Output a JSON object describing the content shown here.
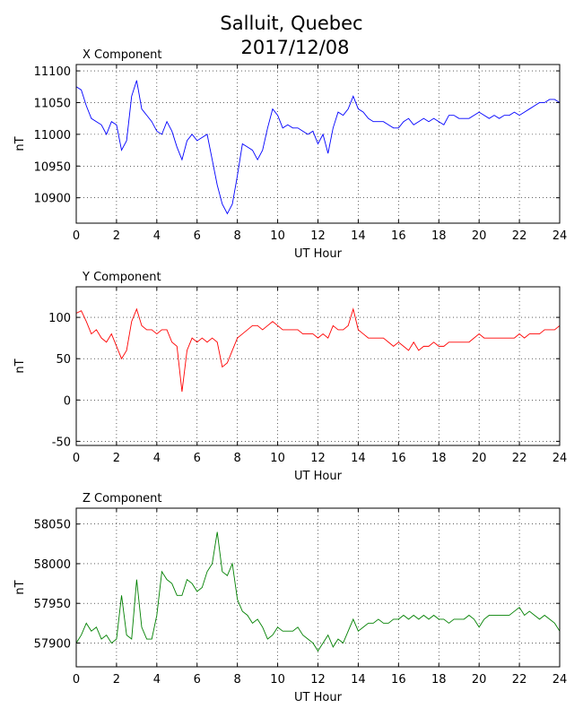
{
  "title": "Salluit, Quebec",
  "subtitle": "2017/12/08",
  "chart_data": [
    {
      "type": "line",
      "title": "X Component",
      "xlabel": "UT Hour",
      "ylabel": "nT",
      "color": "#0000ff",
      "grid": true,
      "xlim": [
        0,
        24
      ],
      "xticks": [
        0,
        2,
        4,
        6,
        8,
        10,
        12,
        14,
        16,
        18,
        20,
        22,
        24
      ],
      "ylim": [
        10860,
        11110
      ],
      "yticks": [
        10900,
        10950,
        11000,
        11050,
        11100
      ],
      "x": [
        0,
        0.25,
        0.5,
        0.75,
        1,
        1.25,
        1.5,
        1.75,
        2,
        2.25,
        2.5,
        2.75,
        3,
        3.25,
        3.5,
        3.75,
        4,
        4.25,
        4.5,
        4.75,
        5,
        5.25,
        5.5,
        5.75,
        6,
        6.25,
        6.5,
        6.75,
        7,
        7.25,
        7.5,
        7.75,
        8,
        8.25,
        8.5,
        8.75,
        9,
        9.25,
        9.5,
        9.75,
        10,
        10.25,
        10.5,
        10.75,
        11,
        11.25,
        11.5,
        11.75,
        12,
        12.25,
        12.5,
        12.75,
        13,
        13.25,
        13.5,
        13.75,
        14,
        14.25,
        14.5,
        14.75,
        15,
        15.25,
        15.5,
        15.75,
        16,
        16.25,
        16.5,
        16.75,
        17,
        17.25,
        17.5,
        17.75,
        18,
        18.25,
        18.5,
        18.75,
        19,
        19.25,
        19.5,
        19.75,
        20,
        20.25,
        20.5,
        20.75,
        21,
        21.25,
        21.5,
        21.75,
        22,
        22.25,
        22.5,
        22.75,
        23,
        23.25,
        23.5,
        23.75,
        24
      ],
      "values": [
        11075,
        11070,
        11045,
        11025,
        11020,
        11015,
        11000,
        11020,
        11015,
        10975,
        10990,
        11060,
        11085,
        11040,
        11030,
        11020,
        11005,
        11000,
        11020,
        11005,
        10980,
        10960,
        10990,
        11000,
        10990,
        10995,
        11000,
        10960,
        10920,
        10890,
        10875,
        10890,
        10935,
        10985,
        10980,
        10975,
        10960,
        10975,
        11010,
        11040,
        11030,
        11010,
        11015,
        11010,
        11010,
        11005,
        11000,
        11005,
        10985,
        11000,
        10970,
        11010,
        11035,
        11030,
        11040,
        11060,
        11040,
        11035,
        11025,
        11020,
        11020,
        11020,
        11015,
        11010,
        11010,
        11020,
        11025,
        11015,
        11020,
        11025,
        11020,
        11025,
        11020,
        11015,
        11030,
        11030,
        11025,
        11025,
        11025,
        11030,
        11035,
        11030,
        11025,
        11030,
        11025,
        11030,
        11030,
        11035,
        11030,
        11035,
        11040,
        11045,
        11050,
        11050,
        11055,
        11055,
        11050
      ]
    },
    {
      "type": "line",
      "title": "Y Component",
      "xlabel": "UT Hour",
      "ylabel": "nT",
      "color": "#ff0000",
      "grid": true,
      "xlim": [
        0,
        24
      ],
      "xticks": [
        0,
        2,
        4,
        6,
        8,
        10,
        12,
        14,
        16,
        18,
        20,
        22,
        24
      ],
      "ylim": [
        -55,
        137
      ],
      "yticks": [
        -50,
        0,
        50,
        100
      ],
      "x": [
        0,
        0.25,
        0.5,
        0.75,
        1,
        1.25,
        1.5,
        1.75,
        2,
        2.25,
        2.5,
        2.75,
        3,
        3.25,
        3.5,
        3.75,
        4,
        4.25,
        4.5,
        4.75,
        5,
        5.25,
        5.5,
        5.75,
        6,
        6.25,
        6.5,
        6.75,
        7,
        7.25,
        7.5,
        7.75,
        8,
        8.25,
        8.5,
        8.75,
        9,
        9.25,
        9.5,
        9.75,
        10,
        10.25,
        10.5,
        10.75,
        11,
        11.25,
        11.5,
        11.75,
        12,
        12.25,
        12.5,
        12.75,
        13,
        13.25,
        13.5,
        13.75,
        14,
        14.25,
        14.5,
        14.75,
        15,
        15.25,
        15.5,
        15.75,
        16,
        16.25,
        16.5,
        16.75,
        17,
        17.25,
        17.5,
        17.75,
        18,
        18.25,
        18.5,
        18.75,
        19,
        19.25,
        19.5,
        19.75,
        20,
        20.25,
        20.5,
        20.75,
        21,
        21.25,
        21.5,
        21.75,
        22,
        22.25,
        22.5,
        22.75,
        23,
        23.25,
        23.5,
        23.75,
        24
      ],
      "values": [
        105,
        108,
        95,
        80,
        85,
        75,
        70,
        80,
        65,
        50,
        60,
        95,
        110,
        90,
        85,
        85,
        80,
        85,
        85,
        70,
        65,
        10,
        60,
        75,
        70,
        75,
        70,
        75,
        70,
        40,
        45,
        60,
        75,
        80,
        85,
        90,
        90,
        85,
        90,
        95,
        90,
        85,
        85,
        85,
        85,
        80,
        80,
        80,
        75,
        80,
        75,
        90,
        85,
        85,
        90,
        110,
        85,
        80,
        75,
        75,
        75,
        75,
        70,
        65,
        70,
        65,
        60,
        70,
        60,
        65,
        65,
        70,
        65,
        65,
        70,
        70,
        70,
        70,
        70,
        75,
        80,
        75,
        75,
        75,
        75,
        75,
        75,
        75,
        80,
        75,
        80,
        80,
        80,
        85,
        85,
        85,
        90
      ]
    },
    {
      "type": "line",
      "title": "Z Component",
      "xlabel": "UT Hour",
      "ylabel": "nT",
      "color": "#008000",
      "grid": true,
      "xlim": [
        0,
        24
      ],
      "xticks": [
        0,
        2,
        4,
        6,
        8,
        10,
        12,
        14,
        16,
        18,
        20,
        22,
        24
      ],
      "ylim": [
        57870,
        58070
      ],
      "yticks": [
        57900,
        57950,
        58000,
        58050
      ],
      "x": [
        0,
        0.25,
        0.5,
        0.75,
        1,
        1.25,
        1.5,
        1.75,
        2,
        2.25,
        2.5,
        2.75,
        3,
        3.25,
        3.5,
        3.75,
        4,
        4.25,
        4.5,
        4.75,
        5,
        5.25,
        5.5,
        5.75,
        6,
        6.25,
        6.5,
        6.75,
        7,
        7.25,
        7.5,
        7.75,
        8,
        8.25,
        8.5,
        8.75,
        9,
        9.25,
        9.5,
        9.75,
        10,
        10.25,
        10.5,
        10.75,
        11,
        11.25,
        11.5,
        11.75,
        12,
        12.25,
        12.5,
        12.75,
        13,
        13.25,
        13.5,
        13.75,
        14,
        14.25,
        14.5,
        14.75,
        15,
        15.25,
        15.5,
        15.75,
        16,
        16.25,
        16.5,
        16.75,
        17,
        17.25,
        17.5,
        17.75,
        18,
        18.25,
        18.5,
        18.75,
        19,
        19.25,
        19.5,
        19.75,
        20,
        20.25,
        20.5,
        20.75,
        21,
        21.25,
        21.5,
        21.75,
        22,
        22.25,
        22.5,
        22.75,
        23,
        23.25,
        23.5,
        23.75,
        24
      ],
      "values": [
        57900,
        57910,
        57925,
        57915,
        57920,
        57905,
        57910,
        57900,
        57905,
        57960,
        57910,
        57905,
        57980,
        57920,
        57905,
        57905,
        57935,
        57990,
        57980,
        57975,
        57960,
        57960,
        57980,
        57975,
        57965,
        57970,
        57990,
        58000,
        58040,
        57990,
        57985,
        58000,
        57955,
        57940,
        57935,
        57925,
        57930,
        57920,
        57905,
        57910,
        57920,
        57915,
        57915,
        57915,
        57920,
        57910,
        57905,
        57900,
        57890,
        57900,
        57910,
        57895,
        57905,
        57900,
        57915,
        57930,
        57915,
        57920,
        57925,
        57925,
        57930,
        57925,
        57925,
        57930,
        57930,
        57935,
        57930,
        57935,
        57930,
        57935,
        57930,
        57935,
        57930,
        57930,
        57925,
        57930,
        57930,
        57930,
        57935,
        57930,
        57920,
        57930,
        57935,
        57935,
        57935,
        57935,
        57935,
        57940,
        57945,
        57935,
        57940,
        57935,
        57930,
        57935,
        57930,
        57925,
        57915
      ]
    }
  ]
}
